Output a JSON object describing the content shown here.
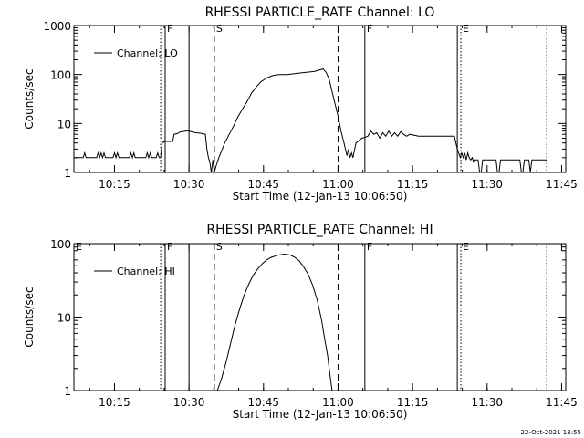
{
  "chart_data": [
    {
      "type": "line",
      "title": "RHESSI PARTICLE_RATE Channel: LO",
      "xlabel": "Start Time (12-Jan-13 10:06:50)",
      "ylabel": "Counts/sec",
      "yscale": "log",
      "xlim": [
        10.1139,
        11.7639
      ],
      "ylim": [
        1,
        1000
      ],
      "x_ticks": [
        10.25,
        10.5,
        10.75,
        11.0,
        11.25,
        11.5,
        11.75
      ],
      "x_tick_labels": [
        "10:15",
        "10:30",
        "10:45",
        "11:00",
        "11:15",
        "11:30",
        "11:45"
      ],
      "y_ticks": [
        1,
        10,
        100,
        1000
      ],
      "y_tick_labels": [
        "1",
        "10",
        "100",
        "1000"
      ],
      "legend": {
        "position": "top-left",
        "label": "Channel: LO"
      },
      "markers": [
        {
          "x": 10.405,
          "style": "dotted",
          "label": ""
        },
        {
          "x": 10.42,
          "style": "solid",
          "label": "F"
        },
        {
          "x": 10.5,
          "style": "solid",
          "label": ""
        },
        {
          "x": 10.585,
          "style": "dashed",
          "label": "S"
        },
        {
          "x": 11.0,
          "style": "dashed",
          "label": ""
        },
        {
          "x": 11.09,
          "style": "solid",
          "label": "F"
        },
        {
          "x": 11.4,
          "style": "solid",
          "label": ""
        },
        {
          "x": 11.412,
          "style": "dotted",
          "label": "E"
        },
        {
          "x": 11.7,
          "style": "dotted",
          "label": ""
        }
      ],
      "series": [
        {
          "name": "Channel: LO",
          "points": [
            [
              10.114,
              2
            ],
            [
              10.145,
              2
            ],
            [
              10.15,
              2.5
            ],
            [
              10.155,
              2
            ],
            [
              10.19,
              2
            ],
            [
              10.195,
              2.5
            ],
            [
              10.2,
              2
            ],
            [
              10.205,
              2.5
            ],
            [
              10.21,
              2
            ],
            [
              10.215,
              2.5
            ],
            [
              10.22,
              2
            ],
            [
              10.245,
              2
            ],
            [
              10.25,
              2.5
            ],
            [
              10.255,
              2
            ],
            [
              10.26,
              2.5
            ],
            [
              10.265,
              2
            ],
            [
              10.3,
              2
            ],
            [
              10.305,
              2.5
            ],
            [
              10.31,
              2
            ],
            [
              10.315,
              2.5
            ],
            [
              10.32,
              2
            ],
            [
              10.355,
              2
            ],
            [
              10.36,
              2.5
            ],
            [
              10.365,
              2
            ],
            [
              10.37,
              2.5
            ],
            [
              10.375,
              2
            ],
            [
              10.39,
              2
            ],
            [
              10.395,
              2.5
            ],
            [
              10.4,
              2
            ],
            [
              10.405,
              2
            ],
            [
              10.41,
              4
            ],
            [
              10.415,
              4.2
            ],
            [
              10.42,
              4.3
            ],
            [
              10.445,
              4.3
            ],
            [
              10.45,
              6
            ],
            [
              10.46,
              6.2
            ],
            [
              10.47,
              6.7
            ],
            [
              10.49,
              7
            ],
            [
              10.5,
              7
            ],
            [
              10.52,
              6.5
            ],
            [
              10.54,
              6.3
            ],
            [
              10.555,
              6
            ],
            [
              10.56,
              3
            ],
            [
              10.565,
              2
            ],
            [
              10.57,
              1.6
            ],
            [
              10.575,
              1
            ],
            [
              10.58,
              1.8
            ],
            [
              10.585,
              1
            ],
            [
              10.59,
              1.3
            ],
            [
              10.6,
              2
            ],
            [
              10.62,
              4
            ],
            [
              10.635,
              6
            ],
            [
              10.65,
              9
            ],
            [
              10.665,
              14
            ],
            [
              10.68,
              20
            ],
            [
              10.695,
              28
            ],
            [
              10.71,
              42
            ],
            [
              10.725,
              55
            ],
            [
              10.74,
              70
            ],
            [
              10.76,
              85
            ],
            [
              10.78,
              95
            ],
            [
              10.8,
              100
            ],
            [
              10.83,
              100
            ],
            [
              10.86,
              105
            ],
            [
              10.89,
              110
            ],
            [
              10.92,
              115
            ],
            [
              10.95,
              130
            ],
            [
              10.96,
              110
            ],
            [
              10.97,
              80
            ],
            [
              10.98,
              45
            ],
            [
              10.99,
              25
            ],
            [
              11.0,
              14
            ],
            [
              11.01,
              7
            ],
            [
              11.02,
              4
            ],
            [
              11.03,
              2.2
            ],
            [
              11.035,
              3
            ],
            [
              11.04,
              2
            ],
            [
              11.045,
              2.5
            ],
            [
              11.05,
              2
            ],
            [
              11.06,
              4
            ],
            [
              11.08,
              5
            ],
            [
              11.1,
              5.5
            ],
            [
              11.11,
              7
            ],
            [
              11.12,
              6
            ],
            [
              11.13,
              6.5
            ],
            [
              11.14,
              5
            ],
            [
              11.15,
              6.5
            ],
            [
              11.16,
              5.5
            ],
            [
              11.17,
              7
            ],
            [
              11.18,
              5.5
            ],
            [
              11.19,
              6.5
            ],
            [
              11.2,
              5.5
            ],
            [
              11.21,
              6.8
            ],
            [
              11.22,
              6
            ],
            [
              11.23,
              5.5
            ],
            [
              11.24,
              6
            ],
            [
              11.27,
              5.5
            ],
            [
              11.3,
              5.5
            ],
            [
              11.33,
              5.5
            ],
            [
              11.36,
              5.5
            ],
            [
              11.39,
              5.5
            ],
            [
              11.4,
              3
            ],
            [
              11.41,
              2
            ],
            [
              11.415,
              2.5
            ],
            [
              11.42,
              2
            ],
            [
              11.425,
              2.5
            ],
            [
              11.43,
              1.8
            ],
            [
              11.435,
              2.5
            ],
            [
              11.44,
              2
            ],
            [
              11.445,
              1.8
            ],
            [
              11.45,
              2
            ],
            [
              11.455,
              1.6
            ],
            [
              11.46,
              1.8
            ],
            [
              11.47,
              1.8
            ],
            [
              11.475,
              1
            ],
            [
              11.48,
              1
            ],
            [
              11.485,
              1.8
            ],
            [
              11.52,
              1.8
            ],
            [
              11.53,
              1.8
            ],
            [
              11.535,
              1
            ],
            [
              11.54,
              1
            ],
            [
              11.545,
              1.8
            ],
            [
              11.6,
              1.8
            ],
            [
              11.61,
              1.8
            ],
            [
              11.615,
              1
            ],
            [
              11.62,
              1
            ],
            [
              11.625,
              1.8
            ],
            [
              11.64,
              1.8
            ],
            [
              11.645,
              1
            ],
            [
              11.65,
              1.8
            ],
            [
              11.7,
              1.8
            ]
          ]
        }
      ]
    },
    {
      "type": "line",
      "title": "RHESSI PARTICLE_RATE Channel: HI",
      "xlabel": "Start Time (12-Jan-13 10:06:50)",
      "ylabel": "Counts/sec",
      "yscale": "log",
      "xlim": [
        10.1139,
        11.7639
      ],
      "ylim": [
        1,
        100
      ],
      "x_ticks": [
        10.25,
        10.5,
        10.75,
        11.0,
        11.25,
        11.5,
        11.75
      ],
      "x_tick_labels": [
        "10:15",
        "10:30",
        "10:45",
        "11:00",
        "11:15",
        "11:30",
        "11:45"
      ],
      "y_ticks": [
        1,
        10,
        100
      ],
      "y_tick_labels": [
        "1",
        "10",
        "100"
      ],
      "legend": {
        "position": "top-left",
        "label": "Channel: HI"
      },
      "markers": [
        {
          "x": 10.114,
          "style": "none",
          "label": "E"
        },
        {
          "x": 10.405,
          "style": "dotted",
          "label": ""
        },
        {
          "x": 10.42,
          "style": "solid",
          "label": "F"
        },
        {
          "x": 10.5,
          "style": "solid",
          "label": ""
        },
        {
          "x": 10.585,
          "style": "dashed",
          "label": "S"
        },
        {
          "x": 11.0,
          "style": "dashed",
          "label": ""
        },
        {
          "x": 11.09,
          "style": "solid",
          "label": "F"
        },
        {
          "x": 11.4,
          "style": "solid",
          "label": ""
        },
        {
          "x": 11.412,
          "style": "dotted",
          "label": "E"
        },
        {
          "x": 11.7,
          "style": "dotted",
          "label": ""
        }
      ],
      "series": [
        {
          "name": "Channel: HI",
          "points": [
            [
              10.595,
              1
            ],
            [
              10.61,
              1.5
            ],
            [
              10.625,
              2.5
            ],
            [
              10.64,
              4.5
            ],
            [
              10.655,
              8
            ],
            [
              10.67,
              13
            ],
            [
              10.685,
              20
            ],
            [
              10.7,
              28
            ],
            [
              10.715,
              37
            ],
            [
              10.73,
              45
            ],
            [
              10.745,
              53
            ],
            [
              10.76,
              60
            ],
            [
              10.775,
              65
            ],
            [
              10.79,
              68
            ],
            [
              10.8,
              70
            ],
            [
              10.81,
              71
            ],
            [
              10.82,
              72
            ],
            [
              10.83,
              71
            ],
            [
              10.84,
              70
            ],
            [
              10.855,
              65
            ],
            [
              10.87,
              58
            ],
            [
              10.885,
              48
            ],
            [
              10.9,
              38
            ],
            [
              10.915,
              27
            ],
            [
              10.93,
              17
            ],
            [
              10.945,
              9
            ],
            [
              10.955,
              5
            ],
            [
              10.965,
              3
            ],
            [
              10.97,
              2
            ],
            [
              10.975,
              1.4
            ],
            [
              10.98,
              1
            ]
          ]
        }
      ]
    }
  ],
  "footer": {
    "timestamp": "22-Oct-2021 13:55"
  }
}
